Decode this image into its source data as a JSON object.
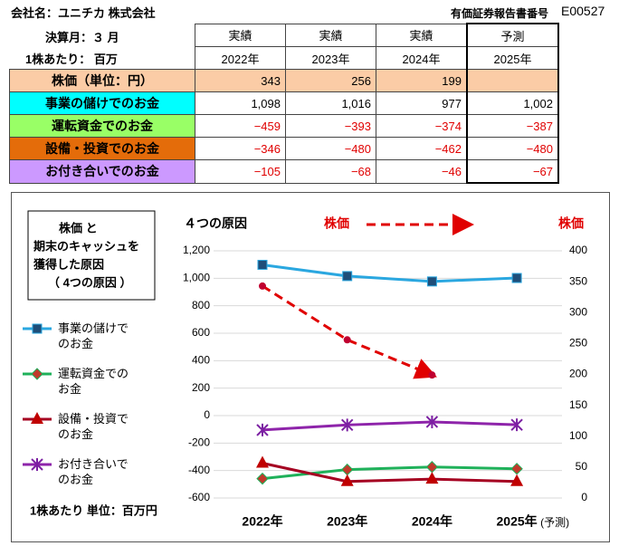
{
  "header": {
    "company": "会社名：ユニチカ 株式会社",
    "report_label": "有価証券報告書番号",
    "report_no": "E00527",
    "month": "決算月：３ 月",
    "unit": "1株あたり： 百万"
  },
  "table": {
    "status": [
      "実績",
      "実績",
      "実績",
      "予測"
    ],
    "years": [
      "2022年",
      "2023年",
      "2024年",
      "2025年"
    ],
    "rows": [
      {
        "label": "株価（単位：円）",
        "values": [
          "343",
          "256",
          "199"
        ]
      },
      {
        "label": "事業の儲けでのお金",
        "values": [
          "1,098",
          "1,016",
          "977",
          "1,002"
        ]
      },
      {
        "label": "運転資金でのお金",
        "values": [
          "−459",
          "−393",
          "−374",
          "−387"
        ]
      },
      {
        "label": "設備・投資でのお金",
        "values": [
          "−346",
          "−480",
          "−462",
          "−480"
        ]
      },
      {
        "label": "お付き合いでのお金",
        "values": [
          "−105",
          "−68",
          "−46",
          "−67"
        ]
      }
    ]
  },
  "chart_data": {
    "type": "line",
    "title": "４つの原因",
    "box_note": [
      "株価 と",
      "期末のキャッシュを",
      "獲得した原因",
      "（ 4つの原因 ）"
    ],
    "unit_note": "1株あたり 単位：百万円",
    "y2_label": "株価",
    "forecast_note": "(予測)",
    "arrow_label": "株価",
    "categories": [
      "2022年",
      "2023年",
      "2024年",
      "2025年"
    ],
    "ylim": [
      -600,
      1200
    ],
    "yticks": [
      -600,
      -400,
      -200,
      0,
      200,
      400,
      600,
      800,
      {
        "value": 1000,
        "label": "1,000"
      },
      {
        "value": 1200,
        "label": "1,200"
      }
    ],
    "y2lim": [
      0,
      400
    ],
    "y2ticks": [
      0,
      50,
      100,
      150,
      200,
      250,
      300,
      350,
      400
    ],
    "grid": true,
    "series": [
      {
        "name": "事業の儲けでのお金",
        "color": "#2aa7e0",
        "marker": "square",
        "marker_color": "#1f4e79",
        "values": [
          1098,
          1016,
          977,
          1002
        ]
      },
      {
        "name": "運転資金でのお金",
        "color": "#1fb15a",
        "marker": "diamond",
        "marker_color": "#c0392b",
        "values": [
          -459,
          -393,
          -374,
          -387
        ]
      },
      {
        "name": "設備・投資でのお金",
        "color": "#a50021",
        "marker": "triangle",
        "marker_color": "#c00000",
        "values": [
          -346,
          -480,
          -462,
          -480
        ]
      },
      {
        "name": "お付き合いでのお金",
        "color": "#8e24aa",
        "marker": "x",
        "marker_color": "#7b1fa2",
        "values": [
          -105,
          -68,
          -46,
          -67
        ]
      },
      {
        "name": "株価",
        "color": "#e00000",
        "marker": "circle",
        "marker_color": "#c00030",
        "axis": "y2",
        "dashed": true,
        "legend": false,
        "values": [
          343,
          256,
          199,
          null
        ]
      }
    ]
  }
}
